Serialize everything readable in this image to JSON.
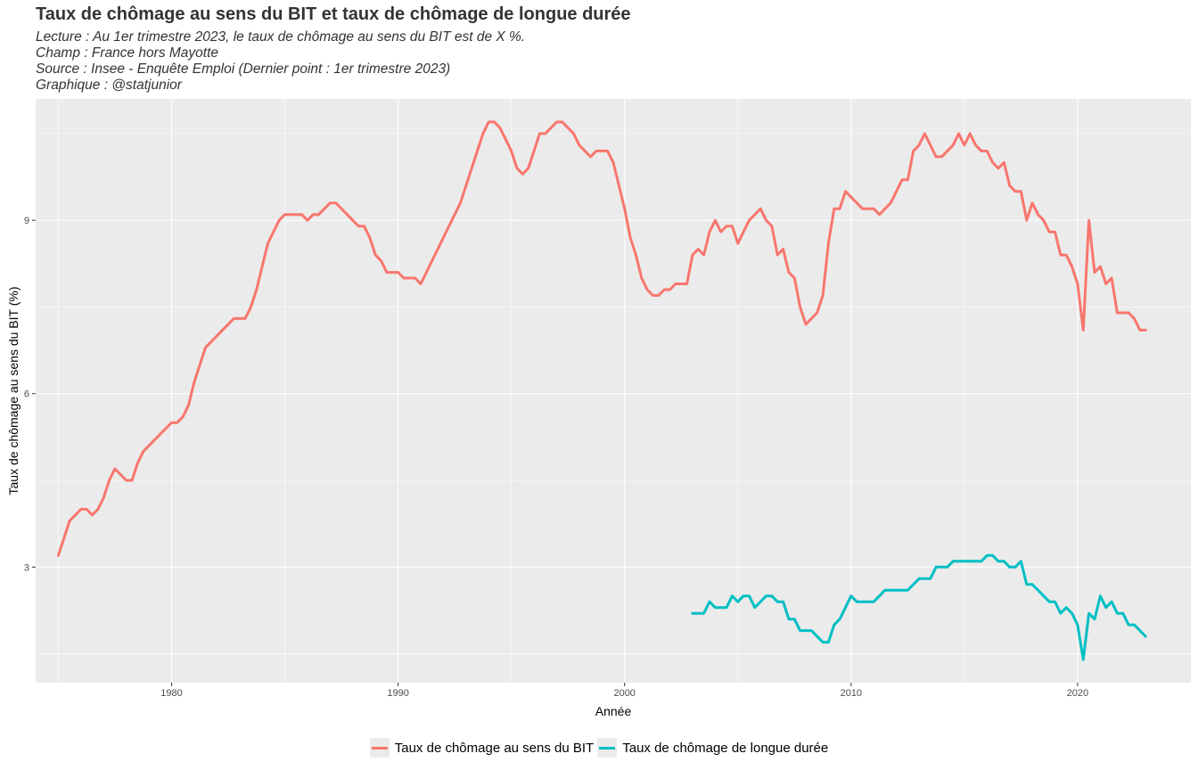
{
  "title": "Taux de chômage au sens du BIT et taux de chômage de longue durée",
  "subtitle": [
    "Lecture : Au 1er trimestre 2023, le taux de chômage au sens du BIT est de X %.",
    "Champ : France hors Mayotte",
    "Source : Insee - Enquête Emploi (Dernier point : 1er trimestre 2023)",
    "Graphique : @statjunior"
  ],
  "colors": {
    "bit": "#F8766D",
    "longue": "#00BFC4",
    "panel": "#EBEBEB",
    "grid": "#FFFFFF"
  },
  "chart_data": {
    "type": "line",
    "xlabel": "Année",
    "ylabel": "Taux de chômage au sens du BIT (%)",
    "xlim": [
      1974.0,
      2025.0
    ],
    "ylim": [
      1.0,
      11.1
    ],
    "x_ticks": [
      1980,
      1990,
      2000,
      2010,
      2020
    ],
    "y_ticks": [
      3,
      6,
      9
    ],
    "grid": true,
    "legend_position": "bottom",
    "series": [
      {
        "name": "Taux de chômage au sens du BIT",
        "color": "#F8766D",
        "points": [
          [
            1975.0,
            3.2
          ],
          [
            1975.25,
            3.5
          ],
          [
            1975.5,
            3.8
          ],
          [
            1975.75,
            3.9
          ],
          [
            1976.0,
            4.0
          ],
          [
            1976.25,
            4.0
          ],
          [
            1976.5,
            3.9
          ],
          [
            1976.75,
            4.0
          ],
          [
            1977.0,
            4.2
          ],
          [
            1977.25,
            4.5
          ],
          [
            1977.5,
            4.7
          ],
          [
            1977.75,
            4.6
          ],
          [
            1978.0,
            4.5
          ],
          [
            1978.25,
            4.5
          ],
          [
            1978.5,
            4.8
          ],
          [
            1978.75,
            5.0
          ],
          [
            1979.0,
            5.1
          ],
          [
            1979.25,
            5.2
          ],
          [
            1979.5,
            5.3
          ],
          [
            1979.75,
            5.4
          ],
          [
            1980.0,
            5.5
          ],
          [
            1980.25,
            5.5
          ],
          [
            1980.5,
            5.6
          ],
          [
            1980.75,
            5.8
          ],
          [
            1981.0,
            6.2
          ],
          [
            1981.25,
            6.5
          ],
          [
            1981.5,
            6.8
          ],
          [
            1981.75,
            6.9
          ],
          [
            1982.0,
            7.0
          ],
          [
            1982.25,
            7.1
          ],
          [
            1982.5,
            7.2
          ],
          [
            1982.75,
            7.3
          ],
          [
            1983.0,
            7.3
          ],
          [
            1983.25,
            7.3
          ],
          [
            1983.5,
            7.5
          ],
          [
            1983.75,
            7.8
          ],
          [
            1984.0,
            8.2
          ],
          [
            1984.25,
            8.6
          ],
          [
            1984.5,
            8.8
          ],
          [
            1984.75,
            9.0
          ],
          [
            1985.0,
            9.1
          ],
          [
            1985.25,
            9.1
          ],
          [
            1985.5,
            9.1
          ],
          [
            1985.75,
            9.1
          ],
          [
            1986.0,
            9.0
          ],
          [
            1986.25,
            9.1
          ],
          [
            1986.5,
            9.1
          ],
          [
            1986.75,
            9.2
          ],
          [
            1987.0,
            9.3
          ],
          [
            1987.25,
            9.3
          ],
          [
            1987.5,
            9.2
          ],
          [
            1987.75,
            9.1
          ],
          [
            1988.0,
            9.0
          ],
          [
            1988.25,
            8.9
          ],
          [
            1988.5,
            8.9
          ],
          [
            1988.75,
            8.7
          ],
          [
            1989.0,
            8.4
          ],
          [
            1989.25,
            8.3
          ],
          [
            1989.5,
            8.1
          ],
          [
            1989.75,
            8.1
          ],
          [
            1990.0,
            8.1
          ],
          [
            1990.25,
            8.0
          ],
          [
            1990.5,
            8.0
          ],
          [
            1990.75,
            8.0
          ],
          [
            1991.0,
            7.9
          ],
          [
            1991.25,
            8.1
          ],
          [
            1991.5,
            8.3
          ],
          [
            1991.75,
            8.5
          ],
          [
            1992.0,
            8.7
          ],
          [
            1992.25,
            8.9
          ],
          [
            1992.5,
            9.1
          ],
          [
            1992.75,
            9.3
          ],
          [
            1993.0,
            9.6
          ],
          [
            1993.25,
            9.9
          ],
          [
            1993.5,
            10.2
          ],
          [
            1993.75,
            10.5
          ],
          [
            1994.0,
            10.7
          ],
          [
            1994.25,
            10.7
          ],
          [
            1994.5,
            10.6
          ],
          [
            1994.75,
            10.4
          ],
          [
            1995.0,
            10.2
          ],
          [
            1995.25,
            9.9
          ],
          [
            1995.5,
            9.8
          ],
          [
            1995.75,
            9.9
          ],
          [
            1996.0,
            10.2
          ],
          [
            1996.25,
            10.5
          ],
          [
            1996.5,
            10.5
          ],
          [
            1996.75,
            10.6
          ],
          [
            1997.0,
            10.7
          ],
          [
            1997.25,
            10.7
          ],
          [
            1997.5,
            10.6
          ],
          [
            1997.75,
            10.5
          ],
          [
            1998.0,
            10.3
          ],
          [
            1998.25,
            10.2
          ],
          [
            1998.5,
            10.1
          ],
          [
            1998.75,
            10.2
          ],
          [
            1999.0,
            10.2
          ],
          [
            1999.25,
            10.2
          ],
          [
            1999.5,
            10.0
          ],
          [
            1999.75,
            9.6
          ],
          [
            2000.0,
            9.2
          ],
          [
            2000.25,
            8.7
          ],
          [
            2000.5,
            8.4
          ],
          [
            2000.75,
            8.0
          ],
          [
            2001.0,
            7.8
          ],
          [
            2001.25,
            7.7
          ],
          [
            2001.5,
            7.7
          ],
          [
            2001.75,
            7.8
          ],
          [
            2002.0,
            7.8
          ],
          [
            2002.25,
            7.9
          ],
          [
            2002.5,
            7.9
          ],
          [
            2002.75,
            7.9
          ],
          [
            2003.0,
            8.4
          ],
          [
            2003.25,
            8.5
          ],
          [
            2003.5,
            8.4
          ],
          [
            2003.75,
            8.8
          ],
          [
            2004.0,
            9.0
          ],
          [
            2004.25,
            8.8
          ],
          [
            2004.5,
            8.9
          ],
          [
            2004.75,
            8.9
          ],
          [
            2005.0,
            8.6
          ],
          [
            2005.25,
            8.8
          ],
          [
            2005.5,
            9.0
          ],
          [
            2005.75,
            9.1
          ],
          [
            2006.0,
            9.2
          ],
          [
            2006.25,
            9.0
          ],
          [
            2006.5,
            8.9
          ],
          [
            2006.75,
            8.4
          ],
          [
            2007.0,
            8.5
          ],
          [
            2007.25,
            8.1
          ],
          [
            2007.5,
            8.0
          ],
          [
            2007.75,
            7.5
          ],
          [
            2008.0,
            7.2
          ],
          [
            2008.25,
            7.3
          ],
          [
            2008.5,
            7.4
          ],
          [
            2008.75,
            7.7
          ],
          [
            2009.0,
            8.6
          ],
          [
            2009.25,
            9.2
          ],
          [
            2009.5,
            9.2
          ],
          [
            2009.75,
            9.5
          ],
          [
            2010.0,
            9.4
          ],
          [
            2010.25,
            9.3
          ],
          [
            2010.5,
            9.2
          ],
          [
            2010.75,
            9.2
          ],
          [
            2011.0,
            9.2
          ],
          [
            2011.25,
            9.1
          ],
          [
            2011.5,
            9.2
          ],
          [
            2011.75,
            9.3
          ],
          [
            2012.0,
            9.5
          ],
          [
            2012.25,
            9.7
          ],
          [
            2012.5,
            9.7
          ],
          [
            2012.75,
            10.2
          ],
          [
            2013.0,
            10.3
          ],
          [
            2013.25,
            10.5
          ],
          [
            2013.5,
            10.3
          ],
          [
            2013.75,
            10.1
          ],
          [
            2014.0,
            10.1
          ],
          [
            2014.25,
            10.2
          ],
          [
            2014.5,
            10.3
          ],
          [
            2014.75,
            10.5
          ],
          [
            2015.0,
            10.3
          ],
          [
            2015.25,
            10.5
          ],
          [
            2015.5,
            10.3
          ],
          [
            2015.75,
            10.2
          ],
          [
            2016.0,
            10.2
          ],
          [
            2016.25,
            10.0
          ],
          [
            2016.5,
            9.9
          ],
          [
            2016.75,
            10.0
          ],
          [
            2017.0,
            9.6
          ],
          [
            2017.25,
            9.5
          ],
          [
            2017.5,
            9.5
          ],
          [
            2017.75,
            9.0
          ],
          [
            2018.0,
            9.3
          ],
          [
            2018.25,
            9.1
          ],
          [
            2018.5,
            9.0
          ],
          [
            2018.75,
            8.8
          ],
          [
            2019.0,
            8.8
          ],
          [
            2019.25,
            8.4
          ],
          [
            2019.5,
            8.4
          ],
          [
            2019.75,
            8.2
          ],
          [
            2020.0,
            7.9
          ],
          [
            2020.25,
            7.1
          ],
          [
            2020.5,
            9.0
          ],
          [
            2020.75,
            8.1
          ],
          [
            2021.0,
            8.2
          ],
          [
            2021.25,
            7.9
          ],
          [
            2021.5,
            8.0
          ],
          [
            2021.75,
            7.4
          ],
          [
            2022.0,
            7.4
          ],
          [
            2022.25,
            7.4
          ],
          [
            2022.5,
            7.3
          ],
          [
            2022.75,
            7.1
          ],
          [
            2023.0,
            7.1
          ]
        ]
      },
      {
        "name": "Taux de chômage de longue durée",
        "color": "#00BFC4",
        "points": [
          [
            2003.0,
            2.2
          ],
          [
            2003.25,
            2.2
          ],
          [
            2003.5,
            2.2
          ],
          [
            2003.75,
            2.4
          ],
          [
            2004.0,
            2.3
          ],
          [
            2004.25,
            2.3
          ],
          [
            2004.5,
            2.3
          ],
          [
            2004.75,
            2.5
          ],
          [
            2005.0,
            2.4
          ],
          [
            2005.25,
            2.5
          ],
          [
            2005.5,
            2.5
          ],
          [
            2005.75,
            2.3
          ],
          [
            2006.0,
            2.4
          ],
          [
            2006.25,
            2.5
          ],
          [
            2006.5,
            2.5
          ],
          [
            2006.75,
            2.4
          ],
          [
            2007.0,
            2.4
          ],
          [
            2007.25,
            2.1
          ],
          [
            2007.5,
            2.1
          ],
          [
            2007.75,
            1.9
          ],
          [
            2008.0,
            1.9
          ],
          [
            2008.25,
            1.9
          ],
          [
            2008.5,
            1.8
          ],
          [
            2008.75,
            1.7
          ],
          [
            2009.0,
            1.7
          ],
          [
            2009.25,
            2.0
          ],
          [
            2009.5,
            2.1
          ],
          [
            2009.75,
            2.3
          ],
          [
            2010.0,
            2.5
          ],
          [
            2010.25,
            2.4
          ],
          [
            2010.5,
            2.4
          ],
          [
            2010.75,
            2.4
          ],
          [
            2011.0,
            2.4
          ],
          [
            2011.25,
            2.5
          ],
          [
            2011.5,
            2.6
          ],
          [
            2011.75,
            2.6
          ],
          [
            2012.0,
            2.6
          ],
          [
            2012.25,
            2.6
          ],
          [
            2012.5,
            2.6
          ],
          [
            2012.75,
            2.7
          ],
          [
            2013.0,
            2.8
          ],
          [
            2013.25,
            2.8
          ],
          [
            2013.5,
            2.8
          ],
          [
            2013.75,
            3.0
          ],
          [
            2014.0,
            3.0
          ],
          [
            2014.25,
            3.0
          ],
          [
            2014.5,
            3.1
          ],
          [
            2014.75,
            3.1
          ],
          [
            2015.0,
            3.1
          ],
          [
            2015.25,
            3.1
          ],
          [
            2015.5,
            3.1
          ],
          [
            2015.75,
            3.1
          ],
          [
            2016.0,
            3.2
          ],
          [
            2016.25,
            3.2
          ],
          [
            2016.5,
            3.1
          ],
          [
            2016.75,
            3.1
          ],
          [
            2017.0,
            3.0
          ],
          [
            2017.25,
            3.0
          ],
          [
            2017.5,
            3.1
          ],
          [
            2017.75,
            2.7
          ],
          [
            2018.0,
            2.7
          ],
          [
            2018.25,
            2.6
          ],
          [
            2018.5,
            2.5
          ],
          [
            2018.75,
            2.4
          ],
          [
            2019.0,
            2.4
          ],
          [
            2019.25,
            2.2
          ],
          [
            2019.5,
            2.3
          ],
          [
            2019.75,
            2.2
          ],
          [
            2020.0,
            2.0
          ],
          [
            2020.25,
            1.4
          ],
          [
            2020.5,
            2.2
          ],
          [
            2020.75,
            2.1
          ],
          [
            2021.0,
            2.5
          ],
          [
            2021.25,
            2.3
          ],
          [
            2021.5,
            2.4
          ],
          [
            2021.75,
            2.2
          ],
          [
            2022.0,
            2.2
          ],
          [
            2022.25,
            2.0
          ],
          [
            2022.5,
            2.0
          ],
          [
            2022.75,
            1.9
          ],
          [
            2023.0,
            1.8
          ]
        ]
      }
    ]
  }
}
